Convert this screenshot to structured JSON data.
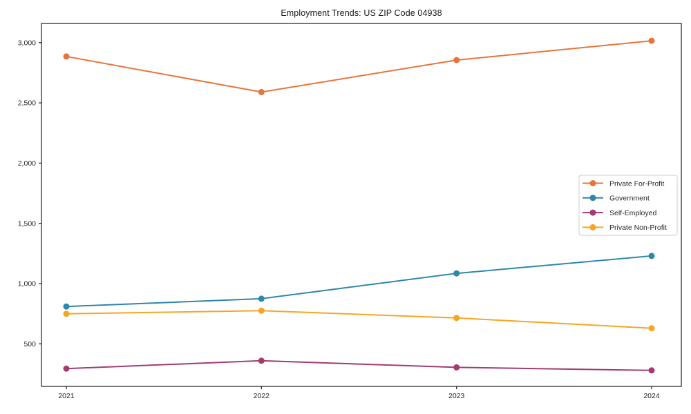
{
  "page": {
    "title": "Employment Trends: US ZIP Code 04938"
  },
  "chart_data": {
    "type": "line",
    "title": "Employment Trends: US ZIP Code 04938",
    "xlabel": "",
    "ylabel": "",
    "x": [
      2021,
      2022,
      2023,
      2024
    ],
    "x_tick_labels": [
      "2021",
      "2022",
      "2023",
      "2024"
    ],
    "y_ticks": [
      500,
      1000,
      1500,
      2000,
      2500,
      3000
    ],
    "y_tick_labels": [
      "500",
      "1,000",
      "1,500",
      "2,000",
      "2,500",
      "3,000"
    ],
    "xlim": [
      2020.85,
      2024.15
    ],
    "ylim": [
      147,
      3159
    ],
    "grid": false,
    "legend_position": "right-middle",
    "marker": "circle",
    "series": [
      {
        "name": "Private For-Profit",
        "color": "#E8743B",
        "values": [
          2885,
          2590,
          2855,
          3015
        ]
      },
      {
        "name": "Government",
        "color": "#2E86AB",
        "values": [
          810,
          875,
          1085,
          1230
        ]
      },
      {
        "name": "Self-Employed",
        "color": "#A23B72",
        "values": [
          295,
          360,
          305,
          280
        ]
      },
      {
        "name": "Private Non-Profit",
        "color": "#F5A623",
        "values": [
          750,
          775,
          715,
          630
        ]
      }
    ],
    "axis_color": "#1a1a1a",
    "legend_border_color": "#cccccc",
    "legend_bg_color": "#ffffff"
  }
}
